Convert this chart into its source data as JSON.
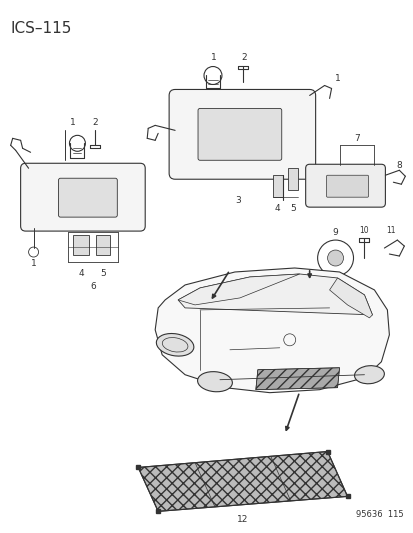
{
  "title": "ICS–115",
  "footer": "95636  115",
  "bg_color": "#ffffff",
  "lc": "#333333",
  "fig_width": 4.14,
  "fig_height": 5.33,
  "dpi": 100,
  "title_fs": 11,
  "footer_fs": 6,
  "label_fs": 6.5
}
